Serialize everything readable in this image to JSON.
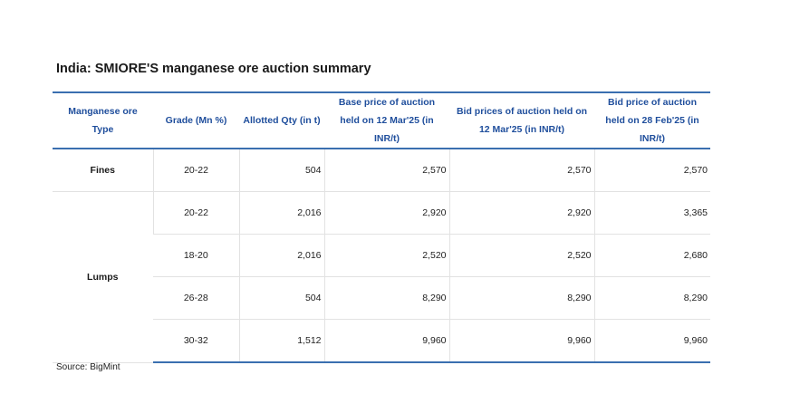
{
  "title": "India:  SMIORE'S manganese ore auction summary",
  "table": {
    "headers": [
      "Manganese ore Type",
      "Grade (Mn %)",
      "Allotted Qty (in t)",
      "Base price of auction held on 12 Mar'25 (in INR/t)",
      "Bid prices of auction held on 12 Mar'25 (in INR/t)",
      "Bid price of auction held on 28 Feb'25 (in INR/t)"
    ],
    "groups": [
      {
        "type": "Fines",
        "rows": [
          [
            "20-22",
            "504",
            "2,570",
            "2,570",
            "2,570"
          ]
        ]
      },
      {
        "type": "Lumps",
        "rows": [
          [
            "20-22",
            "2,016",
            "2,920",
            "2,920",
            "3,365"
          ],
          [
            "18-20",
            "2,016",
            "2,520",
            "2,520",
            "2,680"
          ],
          [
            "26-28",
            "504",
            "8,290",
            "8,290",
            "8,290"
          ],
          [
            "30-32",
            "1,512",
            "9,960",
            "9,960",
            "9,960"
          ]
        ]
      }
    ]
  },
  "source": "Source: BigMint"
}
